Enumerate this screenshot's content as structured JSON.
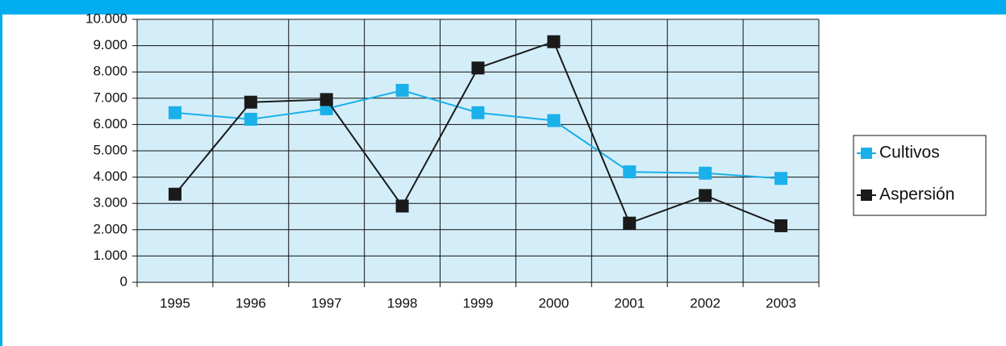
{
  "chart_data": {
    "type": "line",
    "categories": [
      "1995",
      "1996",
      "1997",
      "1998",
      "1999",
      "2000",
      "2001",
      "2002",
      "2003"
    ],
    "series": [
      {
        "name": "Cultivos",
        "color": "#1ab0ea",
        "values": [
          6450,
          6200,
          6600,
          7300,
          6450,
          6150,
          4200,
          4150,
          3950
        ]
      },
      {
        "name": "Aspersión",
        "color": "#1a1a1a",
        "values": [
          3350,
          6850,
          6950,
          2900,
          8150,
          9150,
          2250,
          3300,
          2150
        ]
      }
    ],
    "ylim": [
      0,
      10000
    ],
    "yticks": [
      0,
      {
        "value": 1000,
        "label": "1.000"
      },
      {
        "value": 2000,
        "label": "2.000"
      },
      {
        "value": 3000,
        "label": "3.000"
      },
      {
        "value": 4000,
        "label": "4.000"
      },
      {
        "value": 5000,
        "label": "5.000"
      },
      {
        "value": 6000,
        "label": "6.000"
      },
      {
        "value": 7000,
        "label": "7.000"
      },
      {
        "value": 8000,
        "label": "8.000"
      },
      {
        "value": 9000,
        "label": "9.000"
      },
      {
        "value": 10000,
        "label": "10.000"
      }
    ],
    "grid": true,
    "plot_background": "#d4eef9",
    "legend": "right"
  }
}
